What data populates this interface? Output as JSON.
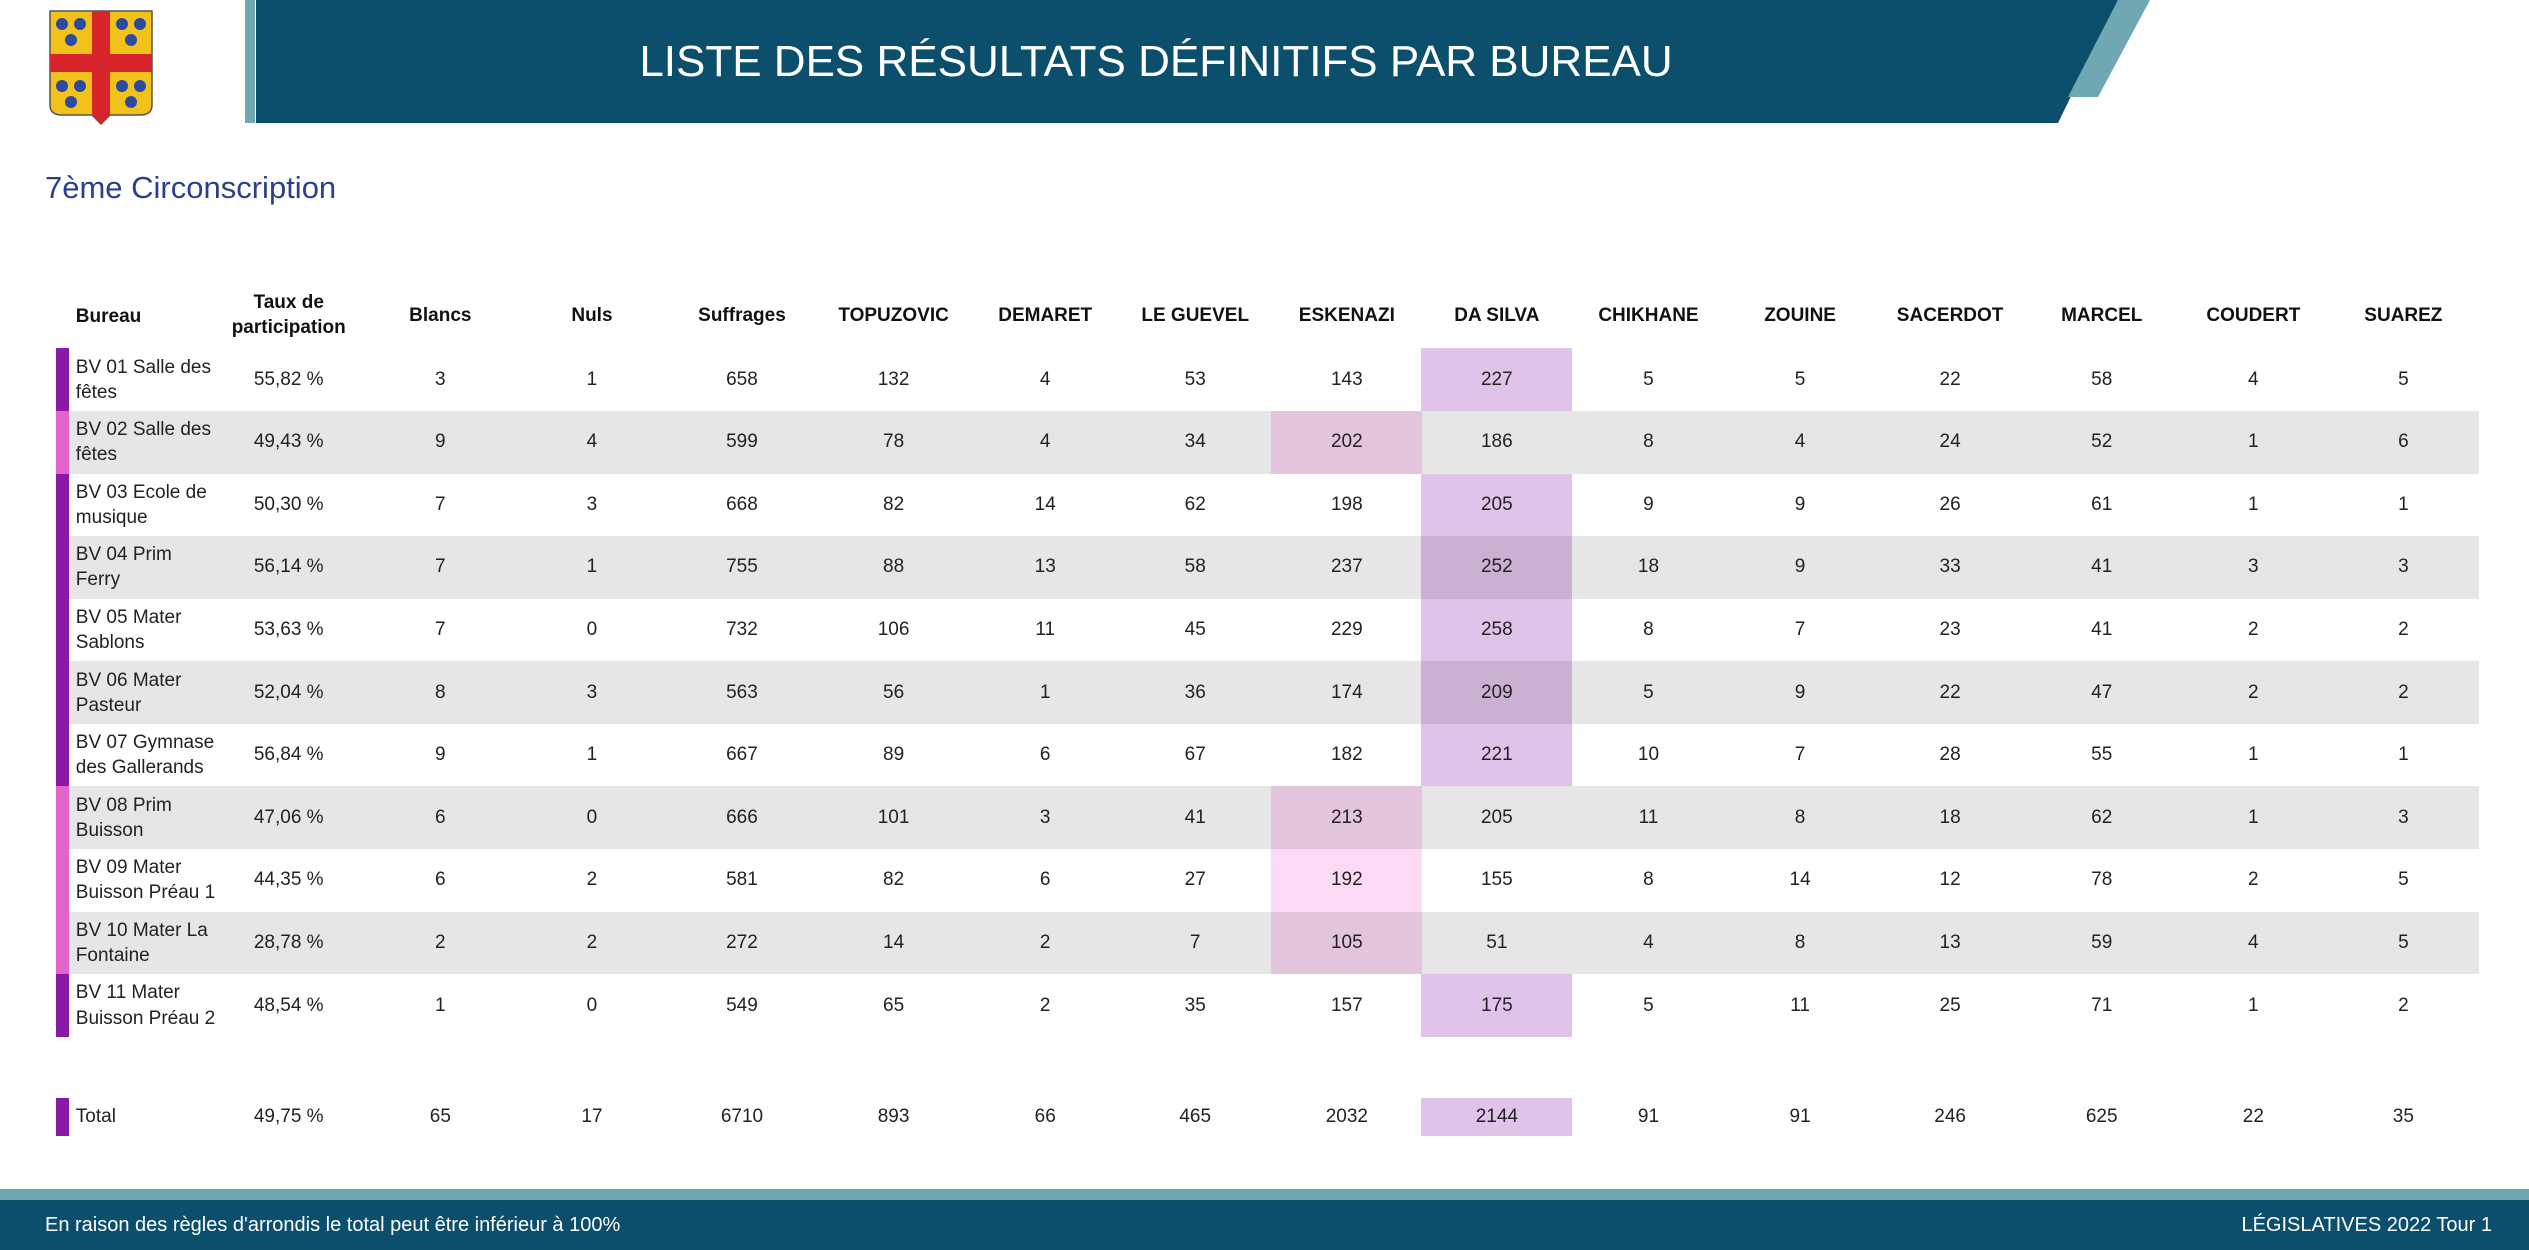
{
  "header": {
    "title": "LISTE DES RÉSULTATS DÉFINITIFS PAR BUREAU"
  },
  "subtitle": "7ème Circonscription",
  "table": {
    "columns": [
      "Bureau",
      "Taux de participation",
      "Blancs",
      "Nuls",
      "Suffrages"
    ],
    "candidates": [
      "TOPUZOVIC",
      "DEMARET",
      "LE GUEVEL",
      "ESKENAZI",
      "DA SILVA",
      "CHIKHANE",
      "ZOUINE",
      "SACERDOT",
      "MARCEL",
      "COUDERT",
      "SUAREZ"
    ],
    "winner_colors": {
      "DA SILVA": {
        "bar": "#8a1aa6",
        "cell": "#e0c3e8"
      },
      "ESKENAZI": {
        "bar": "#e563c9",
        "cell": "#fcd9f5"
      }
    },
    "rows": [
      [
        "BV 01 Salle des fêtes",
        "55,82 %",
        3,
        1,
        658,
        132,
        4,
        53,
        143,
        227,
        5,
        5,
        22,
        58,
        4,
        5
      ],
      [
        "BV 02 Salle des fêtes",
        "49,43 %",
        9,
        4,
        599,
        78,
        4,
        34,
        202,
        186,
        8,
        4,
        24,
        52,
        1,
        6
      ],
      [
        "BV 03 Ecole de musique",
        "50,30 %",
        7,
        3,
        668,
        82,
        14,
        62,
        198,
        205,
        9,
        9,
        26,
        61,
        1,
        1
      ],
      [
        "BV 04 Prim Ferry",
        "56,14 %",
        7,
        1,
        755,
        88,
        13,
        58,
        237,
        252,
        18,
        9,
        33,
        41,
        3,
        3
      ],
      [
        "BV 05 Mater Sablons",
        "53,63 %",
        7,
        0,
        732,
        106,
        11,
        45,
        229,
        258,
        8,
        7,
        23,
        41,
        2,
        2
      ],
      [
        "BV 06 Mater Pasteur",
        "52,04 %",
        8,
        3,
        563,
        56,
        1,
        36,
        174,
        209,
        5,
        9,
        22,
        47,
        2,
        2
      ],
      [
        "BV 07 Gymnase des Gallerands",
        "56,84 %",
        9,
        1,
        667,
        89,
        6,
        67,
        182,
        221,
        10,
        7,
        28,
        55,
        1,
        1
      ],
      [
        "BV 08 Prim Buisson",
        "47,06 %",
        6,
        0,
        666,
        101,
        3,
        41,
        213,
        205,
        11,
        8,
        18,
        62,
        1,
        3
      ],
      [
        "BV 09 Mater Buisson Préau 1",
        "44,35 %",
        6,
        2,
        581,
        82,
        6,
        27,
        192,
        155,
        8,
        14,
        12,
        78,
        2,
        5
      ],
      [
        "BV 10 Mater La Fontaine",
        "28,78 %",
        2,
        2,
        272,
        14,
        2,
        7,
        105,
        51,
        4,
        8,
        13,
        59,
        4,
        5
      ],
      [
        "BV 11 Mater Buisson Préau 2",
        "48,54 %",
        1,
        0,
        549,
        65,
        2,
        35,
        157,
        175,
        5,
        11,
        25,
        71,
        1,
        2
      ]
    ],
    "total": [
      "Total",
      "49,75 %",
      65,
      17,
      6710,
      893,
      66,
      465,
      2032,
      2144,
      91,
      91,
      246,
      625,
      22,
      35
    ]
  },
  "footer": {
    "note": "En raison des règles d'arrondis le total peut être inférieur à 100%",
    "election": "LÉGISLATIVES 2022 Tour 1"
  }
}
